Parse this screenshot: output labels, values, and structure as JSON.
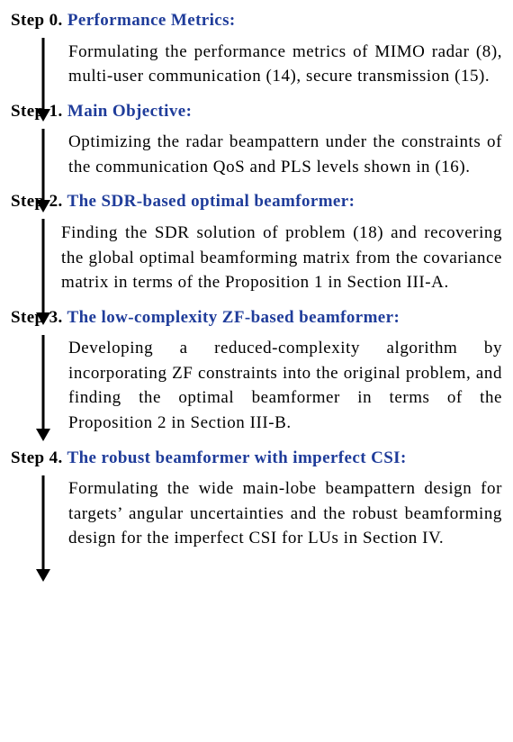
{
  "colors": {
    "title": "#1f3c9a",
    "text": "#000000",
    "arrow": "#000000",
    "bg": "#ffffff"
  },
  "arrow_style": {
    "shaft_width": 3,
    "head_width": 16,
    "head_height": 14
  },
  "steps": [
    {
      "num": "Step 0. ",
      "title": "Performance Metrics:",
      "desc": "Formulating the performance metrics of MIMO radar (8), multi-user communication (14), secure transmission (15).",
      "arrow_len": 95
    },
    {
      "num": "Step 1. ",
      "title": "Main Objective:",
      "desc": "Optimizing the radar beampattern under the constraints of the communication QoS and PLS levels shown in (16).",
      "arrow_len": 95
    },
    {
      "num": "Step 2. ",
      "title": "The SDR-based optimal beamformer:",
      "desc": "Finding the SDR solution of problem (18) and recovering the global optimal beamforming matrix from the covariance matrix in terms of the Proposition 1 in Section III-A.",
      "arrow_len": 120
    },
    {
      "num": "Step 3. ",
      "title": "The low-complexity ZF-based beamformer:",
      "desc": "Developing a reduced-complexity algorithm by incorporating ZF constraints  into the original problem, and finding the optimal beamformer in terms of the Proposition 2 in Section III-B.",
      "arrow_len": 120
    },
    {
      "num": "Step 4. ",
      "title": "The robust beamformer with imperfect CSI:",
      "desc": "Formulating the wide main-lobe beampattern design for targets’ angular uncertainties and the robust beamforming design for the imperfect CSI for LUs in Section IV.",
      "arrow_len": 120
    }
  ]
}
